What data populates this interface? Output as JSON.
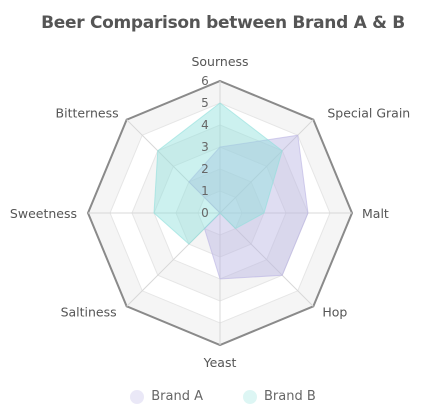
{
  "chart_data": {
    "type": "radar",
    "title": "Beer Comparison between Brand A & B",
    "axes": [
      "Sourness",
      "Special Grain",
      "Malt",
      "Hop",
      "Yeast",
      "Saltiness",
      "Sweetness",
      "Bitterness"
    ],
    "rlim": [
      0,
      6
    ],
    "ticks": [
      "0",
      "1",
      "2",
      "3",
      "4",
      "5",
      "6"
    ],
    "grid": true,
    "legend_position": "bottom",
    "series": [
      {
        "name": "Brand A",
        "values": [
          3,
          5,
          4,
          4,
          3,
          1,
          0,
          2
        ],
        "color": "#b9b3e3"
      },
      {
        "name": "Brand B",
        "values": [
          5,
          4,
          2,
          1,
          0,
          2,
          3,
          4
        ],
        "color": "#8fe0dc"
      }
    ]
  }
}
